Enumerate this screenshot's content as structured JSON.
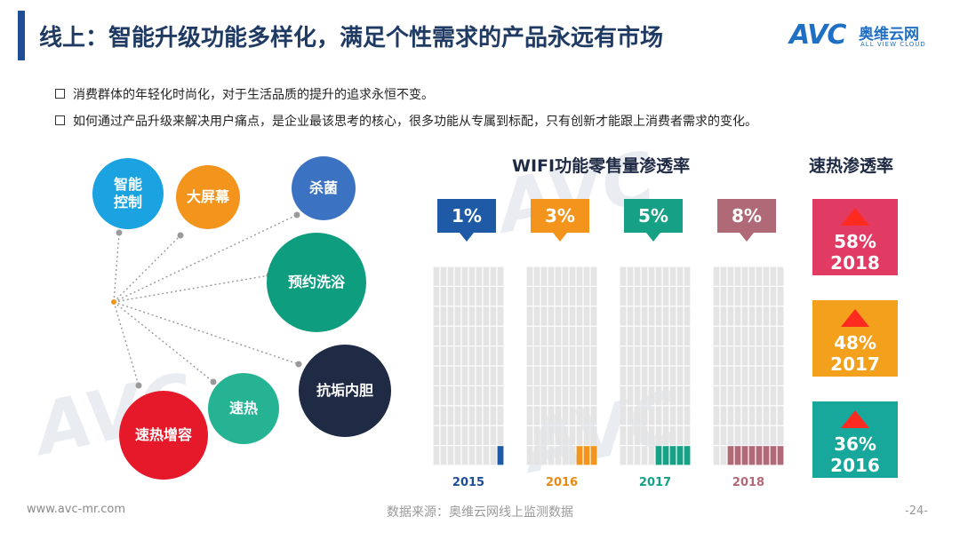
{
  "header": {
    "title": "线上：智能升级功能多样化，满足个性需求的产品永远有市场",
    "logo_mark": "AVC",
    "logo_cn": "奥维云网",
    "logo_en": "ALL VIEW CLOUD"
  },
  "bullets": [
    "消费群体的年轻化时尚化，对于生活品质的提升的追求永恒不变。",
    "如何通过产品升级来解决用户痛点，是企业最该思考的核心，很多功能从专属到标配，只有创新才能跟上消费者需求的变化。"
  ],
  "features": [
    {
      "lines": [
        "智能",
        "控制"
      ],
      "color": "#1aa3e0"
    },
    {
      "lines": [
        "大屏幕"
      ],
      "color": "#f3941d"
    },
    {
      "lines": [
        "杀菌"
      ],
      "color": "#3b73c2"
    },
    {
      "lines": [
        "预约洗浴"
      ],
      "color": "#0e9e7f"
    },
    {
      "lines": [
        "抗垢内胆"
      ],
      "color": "#1f2a44"
    },
    {
      "lines": [
        "速热"
      ],
      "color": "#26b394"
    },
    {
      "lines": [
        "速热增容"
      ],
      "color": "#e6192b"
    }
  ],
  "chart_data": [
    {
      "type": "bar",
      "title": "WIFI功能零售量渗透率",
      "categories": [
        "2015",
        "2016",
        "2017",
        "2018"
      ],
      "values": [
        1,
        3,
        5,
        8
      ],
      "labels": [
        "1%",
        "3%",
        "5%",
        "8%"
      ],
      "colors": [
        "#1f5aa6",
        "#f3941d",
        "#16a085",
        "#b06a77"
      ],
      "ylim": [
        0,
        100
      ],
      "unit": "%"
    },
    {
      "type": "bar",
      "title": "速热渗透率",
      "categories": [
        "2018",
        "2017",
        "2016"
      ],
      "values": [
        58,
        48,
        36
      ],
      "labels": [
        "58%",
        "48%",
        "36%"
      ],
      "colors": [
        "#e13a63",
        "#f3a01d",
        "#17a89b"
      ],
      "unit": "%"
    }
  ],
  "footer": {
    "website": "www.avc-mr.com",
    "source": "数据来源：奥维云网线上监测数据",
    "page": "-24-"
  }
}
